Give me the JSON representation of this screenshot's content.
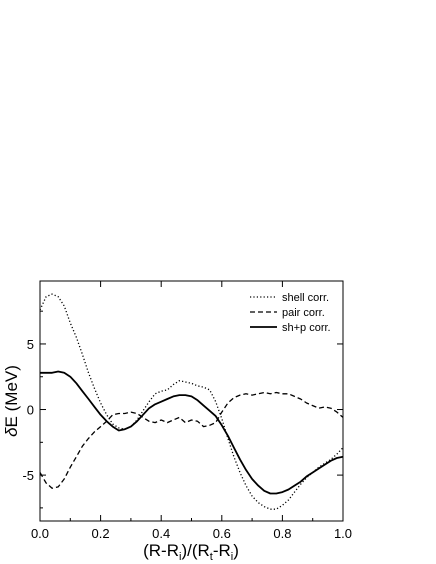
{
  "chart_data": {
    "type": "line",
    "title": "",
    "xlabel_parts": {
      "a": "(R-R",
      "b": "i",
      "c": ")/(R",
      "d": "t",
      "e": "-R",
      "f": "i",
      "g": ")"
    },
    "ylabel_parts": {
      "delta": "δ",
      "rest": "E (MeV)"
    },
    "xlim": [
      0.0,
      1.0
    ],
    "ylim": [
      -8.5,
      9.8
    ],
    "x_ticks": [
      "0.0",
      "0.2",
      "0.4",
      "0.6",
      "0.8",
      "1.0"
    ],
    "y_ticks": [
      "-5",
      "0",
      "5"
    ],
    "grid": false,
    "legend_position": "top-right",
    "series": [
      {
        "name": "shell corr.",
        "style": "dotted",
        "color": "#000000",
        "points": [
          [
            0.0,
            7.6
          ],
          [
            0.02,
            8.6
          ],
          [
            0.04,
            8.8
          ],
          [
            0.06,
            8.6
          ],
          [
            0.08,
            7.9
          ],
          [
            0.1,
            6.6
          ],
          [
            0.12,
            5.5
          ],
          [
            0.14,
            4.2
          ],
          [
            0.16,
            2.8
          ],
          [
            0.18,
            1.6
          ],
          [
            0.2,
            0.5
          ],
          [
            0.22,
            -0.4
          ],
          [
            0.24,
            -1.1
          ],
          [
            0.26,
            -1.4
          ],
          [
            0.28,
            -1.5
          ],
          [
            0.3,
            -1.3
          ],
          [
            0.32,
            -0.8
          ],
          [
            0.34,
            -0.1
          ],
          [
            0.36,
            0.6
          ],
          [
            0.38,
            1.2
          ],
          [
            0.4,
            1.4
          ],
          [
            0.42,
            1.5
          ],
          [
            0.44,
            1.9
          ],
          [
            0.46,
            2.2
          ],
          [
            0.48,
            2.1
          ],
          [
            0.5,
            2.0
          ],
          [
            0.52,
            1.8
          ],
          [
            0.54,
            1.7
          ],
          [
            0.56,
            1.5
          ],
          [
            0.58,
            0.6
          ],
          [
            0.6,
            -0.7
          ],
          [
            0.62,
            -2.2
          ],
          [
            0.64,
            -3.6
          ],
          [
            0.66,
            -4.8
          ],
          [
            0.68,
            -5.8
          ],
          [
            0.7,
            -6.6
          ],
          [
            0.72,
            -7.1
          ],
          [
            0.74,
            -7.4
          ],
          [
            0.76,
            -7.6
          ],
          [
            0.78,
            -7.6
          ],
          [
            0.8,
            -7.3
          ],
          [
            0.82,
            -6.9
          ],
          [
            0.84,
            -6.3
          ],
          [
            0.86,
            -5.7
          ],
          [
            0.88,
            -5.2
          ],
          [
            0.9,
            -4.8
          ],
          [
            0.92,
            -4.4
          ],
          [
            0.94,
            -4.1
          ],
          [
            0.96,
            -3.8
          ],
          [
            0.98,
            -3.4
          ],
          [
            1.0,
            -2.9
          ]
        ]
      },
      {
        "name": "pair corr.",
        "style": "dashed",
        "color": "#000000",
        "points": [
          [
            0.0,
            -4.8
          ],
          [
            0.02,
            -5.6
          ],
          [
            0.04,
            -6.0
          ],
          [
            0.06,
            -5.9
          ],
          [
            0.08,
            -5.3
          ],
          [
            0.1,
            -4.4
          ],
          [
            0.12,
            -3.6
          ],
          [
            0.14,
            -2.8
          ],
          [
            0.16,
            -2.2
          ],
          [
            0.18,
            -1.7
          ],
          [
            0.2,
            -1.3
          ],
          [
            0.22,
            -0.9
          ],
          [
            0.24,
            -0.4
          ],
          [
            0.26,
            -0.3
          ],
          [
            0.28,
            -0.3
          ],
          [
            0.3,
            -0.2
          ],
          [
            0.32,
            -0.3
          ],
          [
            0.34,
            -0.6
          ],
          [
            0.36,
            -0.9
          ],
          [
            0.38,
            -1.0
          ],
          [
            0.4,
            -0.8
          ],
          [
            0.42,
            -1.0
          ],
          [
            0.44,
            -0.8
          ],
          [
            0.46,
            -0.6
          ],
          [
            0.48,
            -1.0
          ],
          [
            0.5,
            -0.8
          ],
          [
            0.52,
            -0.9
          ],
          [
            0.54,
            -1.3
          ],
          [
            0.56,
            -1.2
          ],
          [
            0.58,
            -1.0
          ],
          [
            0.6,
            -0.2
          ],
          [
            0.62,
            0.5
          ],
          [
            0.64,
            0.9
          ],
          [
            0.66,
            1.1
          ],
          [
            0.68,
            1.2
          ],
          [
            0.7,
            1.1
          ],
          [
            0.72,
            1.2
          ],
          [
            0.74,
            1.3
          ],
          [
            0.76,
            1.2
          ],
          [
            0.78,
            1.3
          ],
          [
            0.8,
            1.2
          ],
          [
            0.82,
            1.2
          ],
          [
            0.84,
            1.0
          ],
          [
            0.86,
            0.8
          ],
          [
            0.88,
            0.5
          ],
          [
            0.9,
            0.3
          ],
          [
            0.92,
            0.1
          ],
          [
            0.94,
            0.2
          ],
          [
            0.96,
            0.1
          ],
          [
            0.98,
            -0.2
          ],
          [
            1.0,
            -0.6
          ]
        ]
      },
      {
        "name": "sh+p corr.",
        "style": "solid",
        "color": "#000000",
        "points": [
          [
            0.0,
            2.8
          ],
          [
            0.02,
            2.8
          ],
          [
            0.04,
            2.8
          ],
          [
            0.06,
            2.9
          ],
          [
            0.08,
            2.8
          ],
          [
            0.1,
            2.5
          ],
          [
            0.12,
            2.0
          ],
          [
            0.14,
            1.4
          ],
          [
            0.16,
            0.8
          ],
          [
            0.18,
            0.2
          ],
          [
            0.2,
            -0.4
          ],
          [
            0.22,
            -0.9
          ],
          [
            0.24,
            -1.3
          ],
          [
            0.26,
            -1.6
          ],
          [
            0.28,
            -1.5
          ],
          [
            0.3,
            -1.3
          ],
          [
            0.32,
            -0.9
          ],
          [
            0.34,
            -0.4
          ],
          [
            0.36,
            0.1
          ],
          [
            0.38,
            0.4
          ],
          [
            0.4,
            0.6
          ],
          [
            0.42,
            0.8
          ],
          [
            0.44,
            1.0
          ],
          [
            0.46,
            1.1
          ],
          [
            0.48,
            1.1
          ],
          [
            0.5,
            1.0
          ],
          [
            0.52,
            0.7
          ],
          [
            0.54,
            0.3
          ],
          [
            0.56,
            -0.1
          ],
          [
            0.58,
            -0.5
          ],
          [
            0.6,
            -1.2
          ],
          [
            0.62,
            -2.0
          ],
          [
            0.64,
            -2.9
          ],
          [
            0.66,
            -3.8
          ],
          [
            0.68,
            -4.6
          ],
          [
            0.7,
            -5.3
          ],
          [
            0.72,
            -5.8
          ],
          [
            0.74,
            -6.2
          ],
          [
            0.76,
            -6.4
          ],
          [
            0.78,
            -6.4
          ],
          [
            0.8,
            -6.3
          ],
          [
            0.82,
            -6.1
          ],
          [
            0.84,
            -5.8
          ],
          [
            0.86,
            -5.5
          ],
          [
            0.88,
            -5.1
          ],
          [
            0.9,
            -4.8
          ],
          [
            0.92,
            -4.5
          ],
          [
            0.94,
            -4.2
          ],
          [
            0.96,
            -3.9
          ],
          [
            0.98,
            -3.7
          ],
          [
            1.0,
            -3.6
          ]
        ]
      }
    ]
  }
}
